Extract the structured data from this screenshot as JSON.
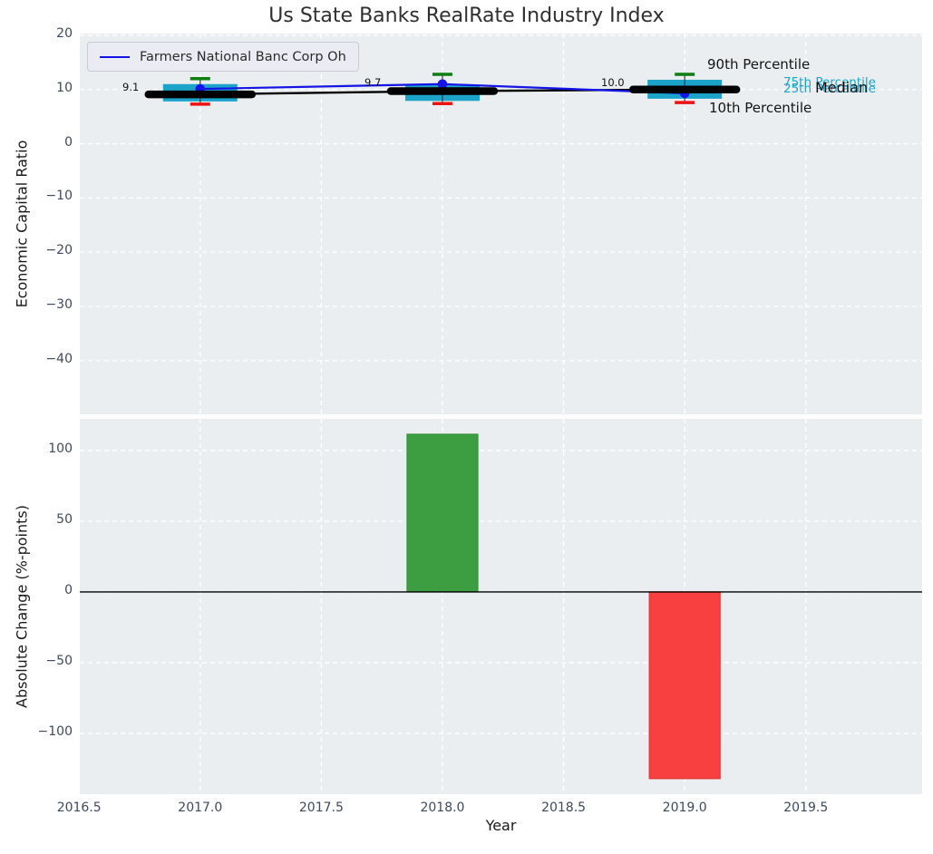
{
  "figure": {
    "title": "Us State Banks RealRate Industry Index"
  },
  "chart_data": [
    {
      "type": "boxplot",
      "title": "Us State Banks RealRate Industry Index",
      "ylabel": "Economic Capital Ratio",
      "xlabel": "",
      "xlim": [
        2016.503,
        2019.98
      ],
      "ylim": [
        -49.9,
        20.32
      ],
      "grid": true,
      "show_xtick_labels": false,
      "legend_position": "upper left",
      "yticks": [
        {
          "v": 20,
          "label": "20"
        },
        {
          "v": 10,
          "label": "10"
        },
        {
          "v": 0,
          "label": "0"
        },
        {
          "v": -10,
          "label": "−10"
        },
        {
          "v": -20,
          "label": "−20"
        },
        {
          "v": -30,
          "label": "−30"
        },
        {
          "v": -40,
          "label": "−40"
        }
      ],
      "xticks": [
        {
          "v": 2016.5,
          "label": "2016.5"
        },
        {
          "v": 2017.0,
          "label": "2017.0"
        },
        {
          "v": 2017.5,
          "label": "2017.5"
        },
        {
          "v": 2018.0,
          "label": "2018.0"
        },
        {
          "v": 2018.5,
          "label": "2018.5"
        },
        {
          "v": 2019.0,
          "label": "2019.0"
        },
        {
          "v": 2019.5,
          "label": "2019.5"
        }
      ],
      "boxes": [
        {
          "year": 2017,
          "p90": 12.0,
          "p75": 11.0,
          "median": 9.1,
          "p25": 7.8,
          "p10": 7.3
        },
        {
          "year": 2018,
          "p90": 12.8,
          "p75": 10.9,
          "median": 9.7,
          "p25": 7.9,
          "p10": 7.4
        },
        {
          "year": 2019,
          "p90": 12.8,
          "p75": 11.8,
          "median": 10.0,
          "p25": 8.3,
          "p10": 7.6
        }
      ],
      "median_value_labels": [
        "9.1",
        "9.7",
        "10.0"
      ],
      "series": [
        {
          "name": "Farmers National Banc Corp Oh",
          "color": "#1414e6",
          "x": [
            2017,
            2018,
            2019
          ],
          "values": [
            10.1,
            11.0,
            9.3
          ]
        }
      ],
      "labels": {
        "p90": "90th Percentile",
        "p75": "75th Percentile",
        "p25": "25th Percentile",
        "median": "Median",
        "p10": "10th Percentile"
      },
      "colors": {
        "box": "#1ba3c9",
        "p90_cap": "#0e7e12",
        "p10_cap": "#ee1111",
        "median": "#000000",
        "whisker": "#3c3c3c",
        "percentile_label_cyan": "#1ba5cd"
      }
    },
    {
      "type": "bar",
      "ylabel": "Absolute Change (%-points)",
      "xlabel": "Year",
      "xlim": [
        2016.503,
        2019.98
      ],
      "ylim": [
        -143.0,
        122.4
      ],
      "grid": true,
      "show_xtick_labels": true,
      "zero_line": true,
      "yticks": [
        {
          "v": 100,
          "label": "100"
        },
        {
          "v": 50,
          "label": "50"
        },
        {
          "v": 0,
          "label": "0"
        },
        {
          "v": -50,
          "label": "−50"
        },
        {
          "v": -100,
          "label": "−100"
        }
      ],
      "xticks": [
        {
          "v": 2016.5,
          "label": "2016.5"
        },
        {
          "v": 2017.0,
          "label": "2017.0"
        },
        {
          "v": 2017.5,
          "label": "2017.5"
        },
        {
          "v": 2018.0,
          "label": "2018.0"
        },
        {
          "v": 2018.5,
          "label": "2018.5"
        },
        {
          "v": 2019.0,
          "label": "2019.0"
        },
        {
          "v": 2019.5,
          "label": "2019.5"
        }
      ],
      "bars": [
        {
          "year": 2018,
          "value": 111.5,
          "color": "#3d9e41",
          "edge": "#33913a"
        },
        {
          "year": 2019,
          "value": -132.0,
          "color": "#f94040",
          "edge": "#e23636"
        }
      ]
    }
  ]
}
